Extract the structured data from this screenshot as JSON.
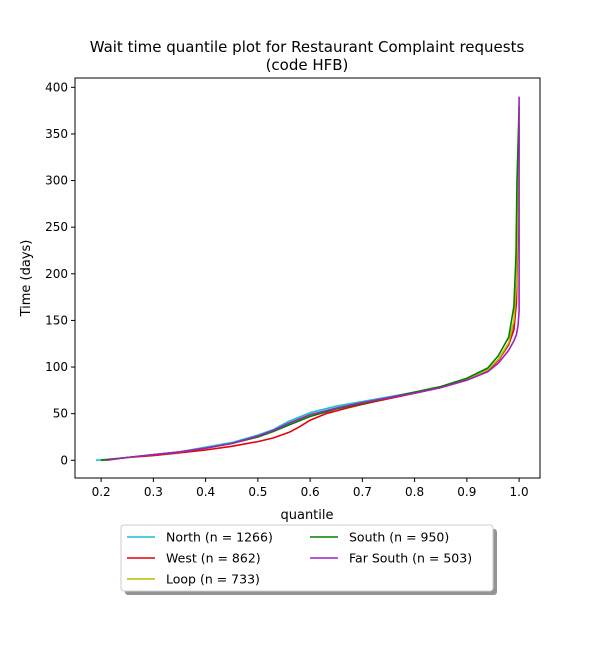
{
  "chart_data": {
    "type": "line",
    "title_line1": "Wait time quantile plot for Restaurant Complaint  requests",
    "title_line2": "(code HFB)",
    "xlabel": "quantile",
    "ylabel": "Time (days)",
    "xlim": [
      0.15,
      1.04
    ],
    "ylim": [
      -19,
      410
    ],
    "xticks": [
      0.2,
      0.3,
      0.4,
      0.5,
      0.6,
      0.7,
      0.8,
      0.9,
      1.0
    ],
    "xtick_labels": [
      "0.2",
      "0.3",
      "0.4",
      "0.5",
      "0.6",
      "0.7",
      "0.8",
      "0.9",
      "1.0"
    ],
    "yticks": [
      0,
      50,
      100,
      150,
      200,
      250,
      300,
      350,
      400
    ],
    "ytick_labels": [
      "0",
      "50",
      "100",
      "150",
      "200",
      "250",
      "300",
      "350",
      "400"
    ],
    "grid": false,
    "legend_position": "below-center",
    "legend_columns": 2,
    "series": [
      {
        "name": "North (n = 1266)",
        "color": "#17becf",
        "points": [
          [
            0.19,
            0
          ],
          [
            0.25,
            3
          ],
          [
            0.3,
            6
          ],
          [
            0.35,
            9
          ],
          [
            0.4,
            14
          ],
          [
            0.45,
            19
          ],
          [
            0.5,
            27
          ],
          [
            0.53,
            33
          ],
          [
            0.56,
            42
          ],
          [
            0.6,
            51
          ],
          [
            0.65,
            58
          ],
          [
            0.7,
            63
          ],
          [
            0.75,
            68
          ],
          [
            0.8,
            73
          ],
          [
            0.85,
            79
          ],
          [
            0.9,
            87
          ],
          [
            0.94,
            97
          ],
          [
            0.96,
            108
          ],
          [
            0.98,
            125
          ],
          [
            0.99,
            145
          ],
          [
            0.995,
            175
          ],
          [
            0.997,
            250
          ],
          [
            0.999,
            330
          ],
          [
            1.0,
            360
          ]
        ]
      },
      {
        "name": "West (n = 862)",
        "color": "#e8000b",
        "points": [
          [
            0.2,
            0
          ],
          [
            0.25,
            3
          ],
          [
            0.3,
            5
          ],
          [
            0.35,
            8
          ],
          [
            0.4,
            11
          ],
          [
            0.45,
            15
          ],
          [
            0.5,
            20
          ],
          [
            0.53,
            24
          ],
          [
            0.56,
            30
          ],
          [
            0.58,
            36
          ],
          [
            0.6,
            43
          ],
          [
            0.63,
            50
          ],
          [
            0.67,
            56
          ],
          [
            0.7,
            60
          ],
          [
            0.75,
            66
          ],
          [
            0.8,
            72
          ],
          [
            0.85,
            78
          ],
          [
            0.9,
            86
          ],
          [
            0.94,
            96
          ],
          [
            0.96,
            107
          ],
          [
            0.98,
            124
          ],
          [
            0.99,
            140
          ],
          [
            0.995,
            170
          ],
          [
            0.998,
            260
          ],
          [
            1.0,
            350
          ]
        ]
      },
      {
        "name": "Loop (n = 733)",
        "color": "#bcbd00",
        "points": [
          [
            0.2,
            0
          ],
          [
            0.25,
            3
          ],
          [
            0.3,
            6
          ],
          [
            0.35,
            9
          ],
          [
            0.4,
            13
          ],
          [
            0.45,
            18
          ],
          [
            0.5,
            25
          ],
          [
            0.53,
            31
          ],
          [
            0.56,
            39
          ],
          [
            0.6,
            48
          ],
          [
            0.65,
            56
          ],
          [
            0.7,
            62
          ],
          [
            0.75,
            67
          ],
          [
            0.8,
            73
          ],
          [
            0.85,
            79
          ],
          [
            0.9,
            87
          ],
          [
            0.94,
            97
          ],
          [
            0.96,
            108
          ],
          [
            0.98,
            126
          ],
          [
            0.99,
            150
          ],
          [
            0.995,
            190
          ],
          [
            0.998,
            280
          ],
          [
            1.0,
            360
          ]
        ]
      },
      {
        "name": "South (n = 950)",
        "color": "#008000",
        "points": [
          [
            0.2,
            0
          ],
          [
            0.25,
            3
          ],
          [
            0.3,
            6
          ],
          [
            0.35,
            9
          ],
          [
            0.4,
            13
          ],
          [
            0.45,
            18
          ],
          [
            0.5,
            25
          ],
          [
            0.53,
            31
          ],
          [
            0.56,
            38
          ],
          [
            0.6,
            47
          ],
          [
            0.65,
            55
          ],
          [
            0.7,
            61
          ],
          [
            0.75,
            67
          ],
          [
            0.8,
            73
          ],
          [
            0.85,
            79
          ],
          [
            0.9,
            88
          ],
          [
            0.94,
            99
          ],
          [
            0.96,
            112
          ],
          [
            0.98,
            132
          ],
          [
            0.99,
            165
          ],
          [
            0.994,
            220
          ],
          [
            0.996,
            300
          ],
          [
            0.999,
            360
          ],
          [
            1.0,
            380
          ]
        ]
      },
      {
        "name": "Far South (n = 503)",
        "color": "#a020c0",
        "points": [
          [
            0.21,
            0
          ],
          [
            0.25,
            3
          ],
          [
            0.3,
            6
          ],
          [
            0.35,
            9
          ],
          [
            0.4,
            13
          ],
          [
            0.45,
            18
          ],
          [
            0.5,
            26
          ],
          [
            0.53,
            32
          ],
          [
            0.56,
            40
          ],
          [
            0.6,
            49
          ],
          [
            0.65,
            56
          ],
          [
            0.7,
            62
          ],
          [
            0.75,
            67
          ],
          [
            0.8,
            72
          ],
          [
            0.85,
            78
          ],
          [
            0.9,
            86
          ],
          [
            0.94,
            95
          ],
          [
            0.96,
            104
          ],
          [
            0.98,
            118
          ],
          [
            0.99,
            128
          ],
          [
            0.995,
            135
          ],
          [
            0.998,
            145
          ],
          [
            1.0,
            160
          ],
          [
            1.0,
            250
          ],
          [
            1.0,
            390
          ]
        ]
      }
    ]
  }
}
